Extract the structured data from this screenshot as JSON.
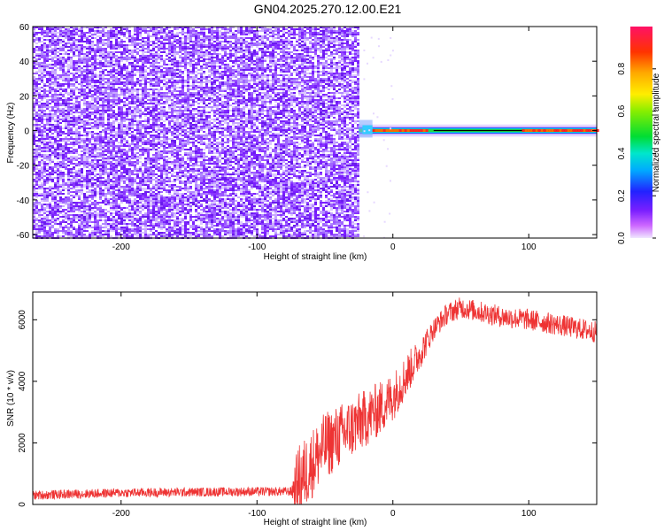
{
  "title": "GN04.2025.270.12.00.E21",
  "chart_data": [
    {
      "type": "heatmap",
      "xlabel": "Height of straight line (km)",
      "ylabel": "Frequency (Hz)",
      "xlim": [
        -265,
        150
      ],
      "ylim": [
        -62,
        60
      ],
      "xticks": [
        -200,
        -100,
        0,
        100
      ],
      "yticks": [
        -60,
        -40,
        -20,
        0,
        20,
        40,
        60
      ],
      "noise_region_x": [
        -265,
        -25
      ],
      "signal_band": {
        "x_start": -25,
        "x_end": 150,
        "center_frequency": 0,
        "peak_segments_x": [
          [
            -15,
            25
          ],
          [
            95,
            150
          ]
        ]
      },
      "colorbar": {
        "label": "Normalized spectral amplitude",
        "ticks": [
          0.0,
          0.2,
          0.4,
          0.6,
          0.8
        ],
        "range": [
          0,
          1
        ]
      }
    },
    {
      "type": "line",
      "xlabel": "Height of straight line (km)",
      "ylabel": "SNR (10 * v/v)",
      "xlim": [
        -265,
        150
      ],
      "ylim": [
        0,
        6900
      ],
      "xticks": [
        -200,
        -100,
        0,
        100
      ],
      "yticks": [
        0,
        2000,
        4000,
        6000
      ],
      "color": "#ee3333",
      "series_profile": {
        "x": [
          -265,
          -200,
          -150,
          -100,
          -75,
          -70,
          -60,
          -50,
          -40,
          -30,
          -20,
          -10,
          0,
          10,
          20,
          30,
          40,
          50,
          60,
          80,
          100,
          120,
          150
        ],
        "y": [
          300,
          380,
          400,
          420,
          420,
          700,
          1300,
          1900,
          2200,
          2500,
          2800,
          3100,
          3500,
          4200,
          4900,
          5700,
          6200,
          6400,
          6300,
          6100,
          6000,
          5850,
          5600
        ]
      },
      "noise_amplitude": {
        "x": [
          -265,
          -75,
          -70,
          -10,
          10,
          30,
          150
        ],
        "y": [
          150,
          150,
          1200,
          900,
          700,
          350,
          350
        ]
      }
    }
  ]
}
